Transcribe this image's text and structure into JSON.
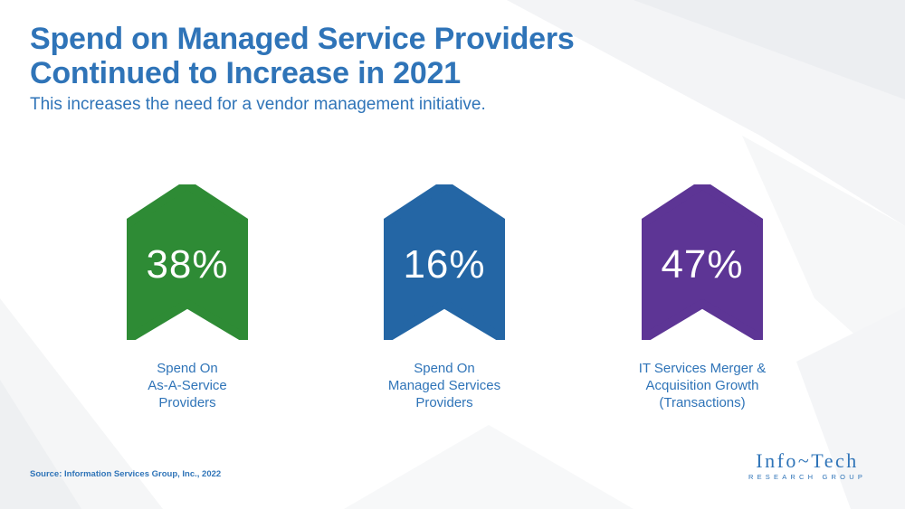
{
  "slide": {
    "title_line1": "Spend on Managed Service Providers",
    "title_line2": "Continued to Increase in 2021",
    "subtitle": "This increases the need for a vendor management initiative."
  },
  "stats": [
    {
      "value": "38%",
      "label_lines": [
        "Spend On",
        "As-A-Service",
        "Providers"
      ],
      "color": "#2e8b35"
    },
    {
      "value": "16%",
      "label_lines": [
        "Spend On",
        "Managed Services",
        "Providers"
      ],
      "color": "#2466a5"
    },
    {
      "value": "47%",
      "label_lines": [
        "IT Services Merger &",
        "Acquisition Growth",
        "(Transactions)"
      ],
      "color": "#5d3595"
    }
  ],
  "footer": {
    "source": "Source: Information Services Group, Inc., 2022"
  },
  "logo": {
    "text": "Info~Tech",
    "tagline": "RESEARCH GROUP"
  },
  "colors": {
    "brand_blue": "#2f74b8"
  }
}
